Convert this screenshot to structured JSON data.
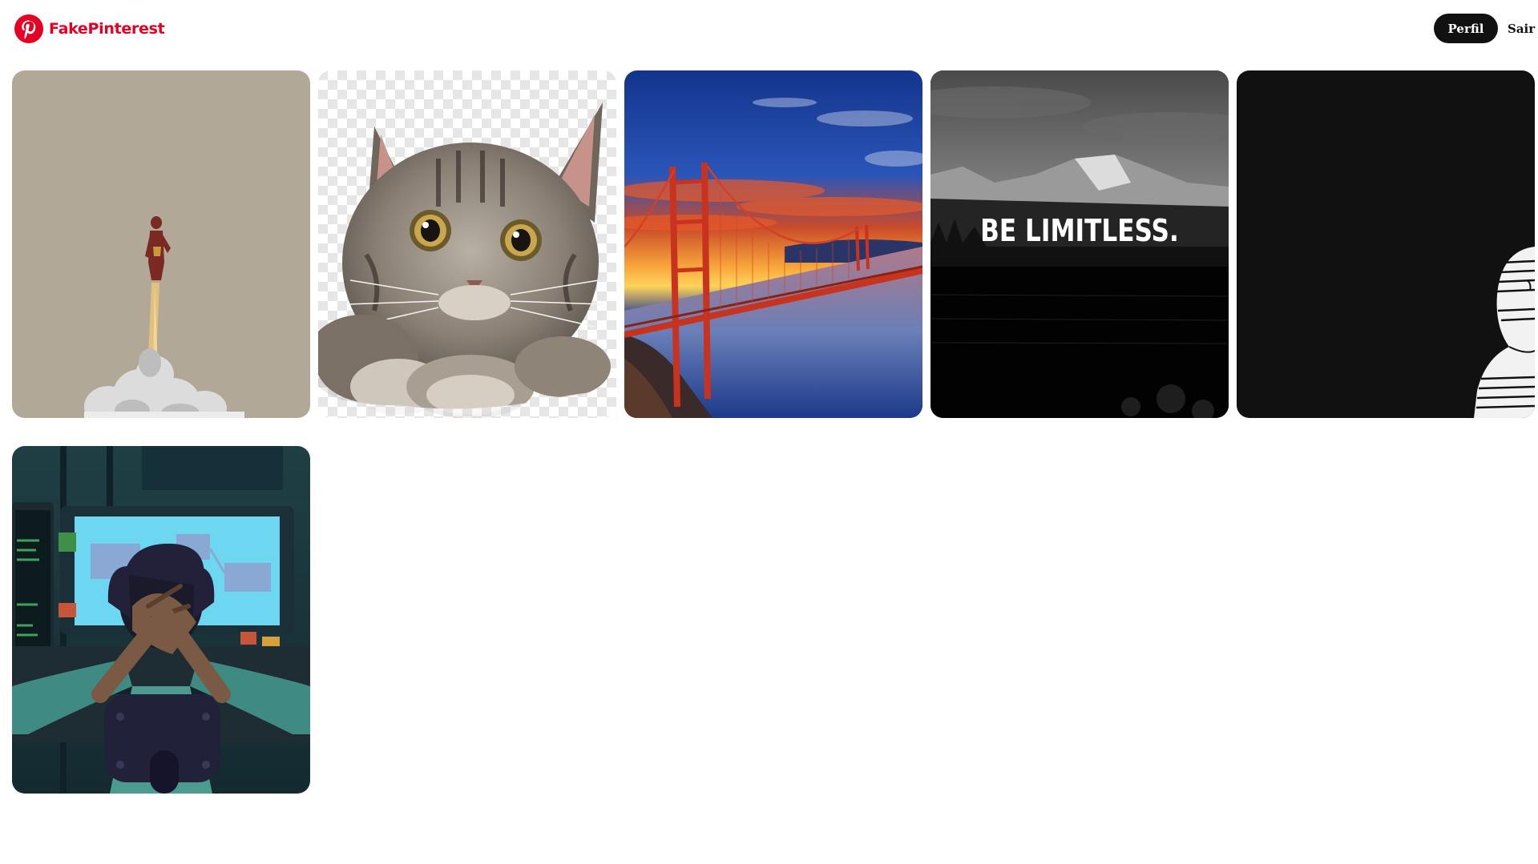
{
  "header": {
    "brand": {
      "name": "FakePinterest",
      "icon": "pinterest-logo-icon",
      "color": "#e60023"
    },
    "nav": {
      "profile_label": "Perfil",
      "logout_label": "Sair"
    }
  },
  "pins": [
    {
      "id": "pin-1",
      "subject": "flying-hero-illustration",
      "background": "#b1a898"
    },
    {
      "id": "pin-2",
      "subject": "tabby-kitten",
      "background": "#f2f2f2"
    },
    {
      "id": "pin-3",
      "subject": "golden-gate-bridge-sunset",
      "background": "#1a3c8c"
    },
    {
      "id": "pin-4",
      "subject": "mountain-lake-motivational",
      "background": "#1a1a1a",
      "overlay_text": "BE LIMITLESS."
    },
    {
      "id": "pin-5",
      "subject": "dark-anime-character",
      "background": "#111111"
    },
    {
      "id": "pin-6",
      "subject": "programmer-at-desk-illustration",
      "background": "#1b3a3a"
    }
  ]
}
